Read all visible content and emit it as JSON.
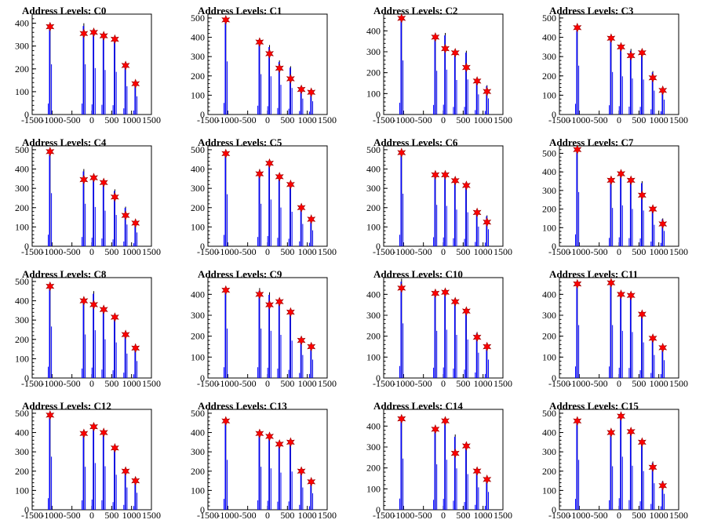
{
  "chart_data": [
    {
      "title": "Address Levels: C0",
      "type": "bar",
      "xlim": [
        -1500,
        1500
      ],
      "ylim": [
        0,
        440
      ],
      "yticks": [
        0,
        100,
        200,
        300,
        400
      ],
      "xticks": [
        "-1500",
        "-1000",
        "-500",
        "0",
        "500",
        "1000",
        "1500"
      ],
      "peaks_x": [
        -1050,
        -200,
        50,
        300,
        580,
        850,
        1100
      ],
      "peaks_y": [
        385,
        355,
        360,
        345,
        330,
        215,
        135
      ],
      "bar_heights": [
        400,
        400,
        370,
        355,
        340,
        225,
        145
      ]
    },
    {
      "title": "Address Levels: C1",
      "type": "bar",
      "xlim": [
        -1500,
        1500
      ],
      "ylim": [
        0,
        520
      ],
      "yticks": [
        0,
        100,
        200,
        300,
        400,
        500
      ],
      "xticks": [
        "-1500",
        "-1000",
        "-500",
        "0",
        "500",
        "1000",
        "1500"
      ],
      "peaks_x": [
        -1050,
        -200,
        50,
        300,
        580,
        850,
        1100
      ],
      "peaks_y": [
        490,
        375,
        315,
        240,
        185,
        130,
        115
      ],
      "bar_heights": [
        500,
        380,
        360,
        280,
        250,
        150,
        125
      ]
    },
    {
      "title": "Address Levels: C2",
      "type": "bar",
      "xlim": [
        -1500,
        1500
      ],
      "ylim": [
        0,
        480
      ],
      "yticks": [
        0,
        100,
        200,
        300,
        400
      ],
      "xticks": [
        "-1500",
        "-1000",
        "-500",
        "0",
        "500",
        "1000",
        "1500"
      ],
      "peaks_x": [
        -1050,
        -200,
        50,
        300,
        580,
        850,
        1100
      ],
      "peaks_y": [
        460,
        370,
        315,
        295,
        225,
        160,
        110
      ],
      "bar_heights": [
        470,
        380,
        390,
        300,
        305,
        175,
        140
      ]
    },
    {
      "title": "Address Levels: C3",
      "type": "bar",
      "xlim": [
        -1500,
        1500
      ],
      "ylim": [
        0,
        520
      ],
      "yticks": [
        0,
        100,
        200,
        300,
        400,
        500
      ],
      "xticks": [
        "-1500",
        "-1000",
        "-500",
        "0",
        "500",
        "1000",
        "1500"
      ],
      "peaks_x": [
        -1050,
        -200,
        50,
        300,
        580,
        850,
        1100
      ],
      "peaks_y": [
        450,
        395,
        350,
        305,
        320,
        190,
        125
      ],
      "bar_heights": [
        460,
        400,
        360,
        340,
        330,
        225,
        140
      ]
    },
    {
      "title": "Address Levels: C4",
      "type": "bar",
      "xlim": [
        -1500,
        1500
      ],
      "ylim": [
        0,
        520
      ],
      "yticks": [
        0,
        100,
        200,
        300,
        400,
        500
      ],
      "xticks": [
        "-1500",
        "-1000",
        "-500",
        "0",
        "500",
        "1000",
        "1500"
      ],
      "peaks_x": [
        -1050,
        -200,
        50,
        300,
        580,
        850,
        1100
      ],
      "peaks_y": [
        490,
        345,
        355,
        330,
        255,
        160,
        120
      ],
      "bar_heights": [
        500,
        400,
        370,
        335,
        295,
        205,
        130
      ]
    },
    {
      "title": "Address Levels: C5",
      "type": "bar",
      "xlim": [
        -1500,
        1500
      ],
      "ylim": [
        0,
        520
      ],
      "yticks": [
        0,
        100,
        200,
        300,
        400,
        500
      ],
      "xticks": [
        "-1500",
        "-1000",
        "-500",
        "0",
        "500",
        "1000",
        "1500"
      ],
      "peaks_x": [
        -1050,
        -200,
        50,
        300,
        580,
        850,
        1100
      ],
      "peaks_y": [
        480,
        375,
        430,
        360,
        320,
        200,
        140
      ],
      "bar_heights": [
        490,
        400,
        440,
        365,
        325,
        210,
        150
      ]
    },
    {
      "title": "Address Levels: C6",
      "type": "bar",
      "xlim": [
        -1500,
        1500
      ],
      "ylim": [
        0,
        520
      ],
      "yticks": [
        0,
        100,
        200,
        300,
        400,
        500
      ],
      "xticks": [
        "-1500",
        "-1000",
        "-500",
        "0",
        "500",
        "1000",
        "1500"
      ],
      "peaks_x": [
        -1050,
        -200,
        50,
        300,
        580,
        850,
        1100
      ],
      "peaks_y": [
        485,
        370,
        370,
        340,
        315,
        175,
        125
      ],
      "bar_heights": [
        495,
        390,
        380,
        345,
        320,
        185,
        160
      ]
    },
    {
      "title": "Address Levels: C7",
      "type": "bar",
      "xlim": [
        -1500,
        1500
      ],
      "ylim": [
        0,
        540
      ],
      "yticks": [
        0,
        100,
        200,
        300,
        400,
        500
      ],
      "xticks": [
        "-1500",
        "-1000",
        "-500",
        "0",
        "500",
        "1000",
        "1500"
      ],
      "peaks_x": [
        -1050,
        -200,
        50,
        300,
        580,
        850,
        1100
      ],
      "peaks_y": [
        520,
        355,
        390,
        355,
        275,
        200,
        120
      ],
      "bar_heights": [
        530,
        375,
        400,
        365,
        350,
        210,
        150
      ]
    },
    {
      "title": "Address Levels: C8",
      "type": "bar",
      "xlim": [
        -1500,
        1500
      ],
      "ylim": [
        0,
        520
      ],
      "yticks": [
        0,
        100,
        200,
        300,
        400,
        500
      ],
      "xticks": [
        "-1500",
        "-1000",
        "-500",
        "0",
        "500",
        "1000",
        "1500"
      ],
      "peaks_x": [
        -1050,
        -200,
        50,
        300,
        580,
        850,
        1100
      ],
      "peaks_y": [
        475,
        400,
        380,
        355,
        315,
        225,
        155
      ],
      "bar_heights": [
        485,
        410,
        450,
        365,
        335,
        230,
        160
      ]
    },
    {
      "title": "Address Levels: C9",
      "type": "bar",
      "xlim": [
        -1500,
        1500
      ],
      "ylim": [
        0,
        480
      ],
      "yticks": [
        0,
        100,
        200,
        300,
        400
      ],
      "xticks": [
        "-1500",
        "-1000",
        "-500",
        "0",
        "500",
        "1000",
        "1500"
      ],
      "peaks_x": [
        -1050,
        -200,
        50,
        300,
        580,
        850,
        1100
      ],
      "peaks_y": [
        420,
        400,
        350,
        365,
        315,
        180,
        150
      ],
      "bar_heights": [
        430,
        430,
        410,
        375,
        325,
        200,
        160
      ]
    },
    {
      "title": "Address Levels: C10",
      "type": "bar",
      "xlim": [
        -1500,
        1500
      ],
      "ylim": [
        0,
        480
      ],
      "yticks": [
        0,
        100,
        200,
        300,
        400
      ],
      "xticks": [
        "-1500",
        "-1000",
        "-500",
        "0",
        "500",
        "1000",
        "1500"
      ],
      "peaks_x": [
        -1050,
        -200,
        50,
        300,
        580,
        850,
        1100
      ],
      "peaks_y": [
        430,
        405,
        410,
        365,
        320,
        195,
        150
      ],
      "bar_heights": [
        475,
        410,
        420,
        375,
        335,
        220,
        160
      ]
    },
    {
      "title": "Address Levels: C11",
      "type": "bar",
      "xlim": [
        -1500,
        1500
      ],
      "ylim": [
        0,
        480
      ],
      "yticks": [
        0,
        100,
        200,
        300,
        400
      ],
      "xticks": [
        "-1500",
        "-1000",
        "-500",
        "0",
        "500",
        "1000",
        "1500"
      ],
      "peaks_x": [
        -1050,
        -200,
        50,
        300,
        580,
        850,
        1100
      ],
      "peaks_y": [
        450,
        455,
        400,
        395,
        305,
        190,
        145
      ],
      "bar_heights": [
        460,
        460,
        410,
        400,
        310,
        200,
        155
      ]
    },
    {
      "title": "Address Levels: C12",
      "type": "bar",
      "xlim": [
        -1500,
        1500
      ],
      "ylim": [
        0,
        520
      ],
      "yticks": [
        0,
        100,
        200,
        300,
        400,
        500
      ],
      "xticks": [
        "-1500",
        "-1000",
        "-500",
        "0",
        "500",
        "1000",
        "1500"
      ],
      "peaks_x": [
        -1050,
        -200,
        50,
        300,
        580,
        850,
        1100
      ],
      "peaks_y": [
        490,
        395,
        430,
        400,
        320,
        200,
        150
      ],
      "bar_heights": [
        500,
        405,
        440,
        410,
        330,
        210,
        160
      ]
    },
    {
      "title": "Address Levels: C13",
      "type": "bar",
      "xlim": [
        -1500,
        1500
      ],
      "ylim": [
        0,
        520
      ],
      "yticks": [
        0,
        100,
        200,
        300,
        400,
        500
      ],
      "xticks": [
        "-1500",
        "-1000",
        "-500",
        "0",
        "500",
        "1000",
        "1500"
      ],
      "peaks_x": [
        -1050,
        -200,
        50,
        300,
        580,
        850,
        1100
      ],
      "peaks_y": [
        460,
        395,
        380,
        340,
        350,
        200,
        145
      ],
      "bar_heights": [
        470,
        405,
        390,
        350,
        360,
        210,
        155
      ]
    },
    {
      "title": "Address Levels: C14",
      "type": "bar",
      "xlim": [
        -1500,
        1500
      ],
      "ylim": [
        0,
        480
      ],
      "yticks": [
        0,
        100,
        200,
        300,
        400
      ],
      "xticks": [
        "-1500",
        "-1000",
        "-500",
        "0",
        "500",
        "1000",
        "1500"
      ],
      "peaks_x": [
        -1050,
        -200,
        50,
        300,
        580,
        850,
        1100
      ],
      "peaks_y": [
        435,
        385,
        425,
        270,
        305,
        185,
        145
      ],
      "bar_heights": [
        445,
        395,
        435,
        360,
        310,
        195,
        155
      ]
    },
    {
      "title": "Address Levels: C15",
      "type": "bar",
      "xlim": [
        -1500,
        1500
      ],
      "ylim": [
        0,
        520
      ],
      "yticks": [
        0,
        100,
        200,
        300,
        400,
        500
      ],
      "xticks": [
        "-1500",
        "-1000",
        "-500",
        "0",
        "500",
        "1000",
        "1500"
      ],
      "peaks_x": [
        -1050,
        -200,
        50,
        300,
        580,
        850,
        1100
      ],
      "peaks_y": [
        460,
        400,
        485,
        405,
        350,
        220,
        125
      ],
      "bar_heights": [
        470,
        410,
        500,
        415,
        365,
        250,
        150
      ]
    }
  ],
  "colors": {
    "bar": "#0000ff",
    "bar_dark": "#000000",
    "marker_fill": "#ff0000",
    "marker_edge": "#990000",
    "axis": "#000000"
  }
}
